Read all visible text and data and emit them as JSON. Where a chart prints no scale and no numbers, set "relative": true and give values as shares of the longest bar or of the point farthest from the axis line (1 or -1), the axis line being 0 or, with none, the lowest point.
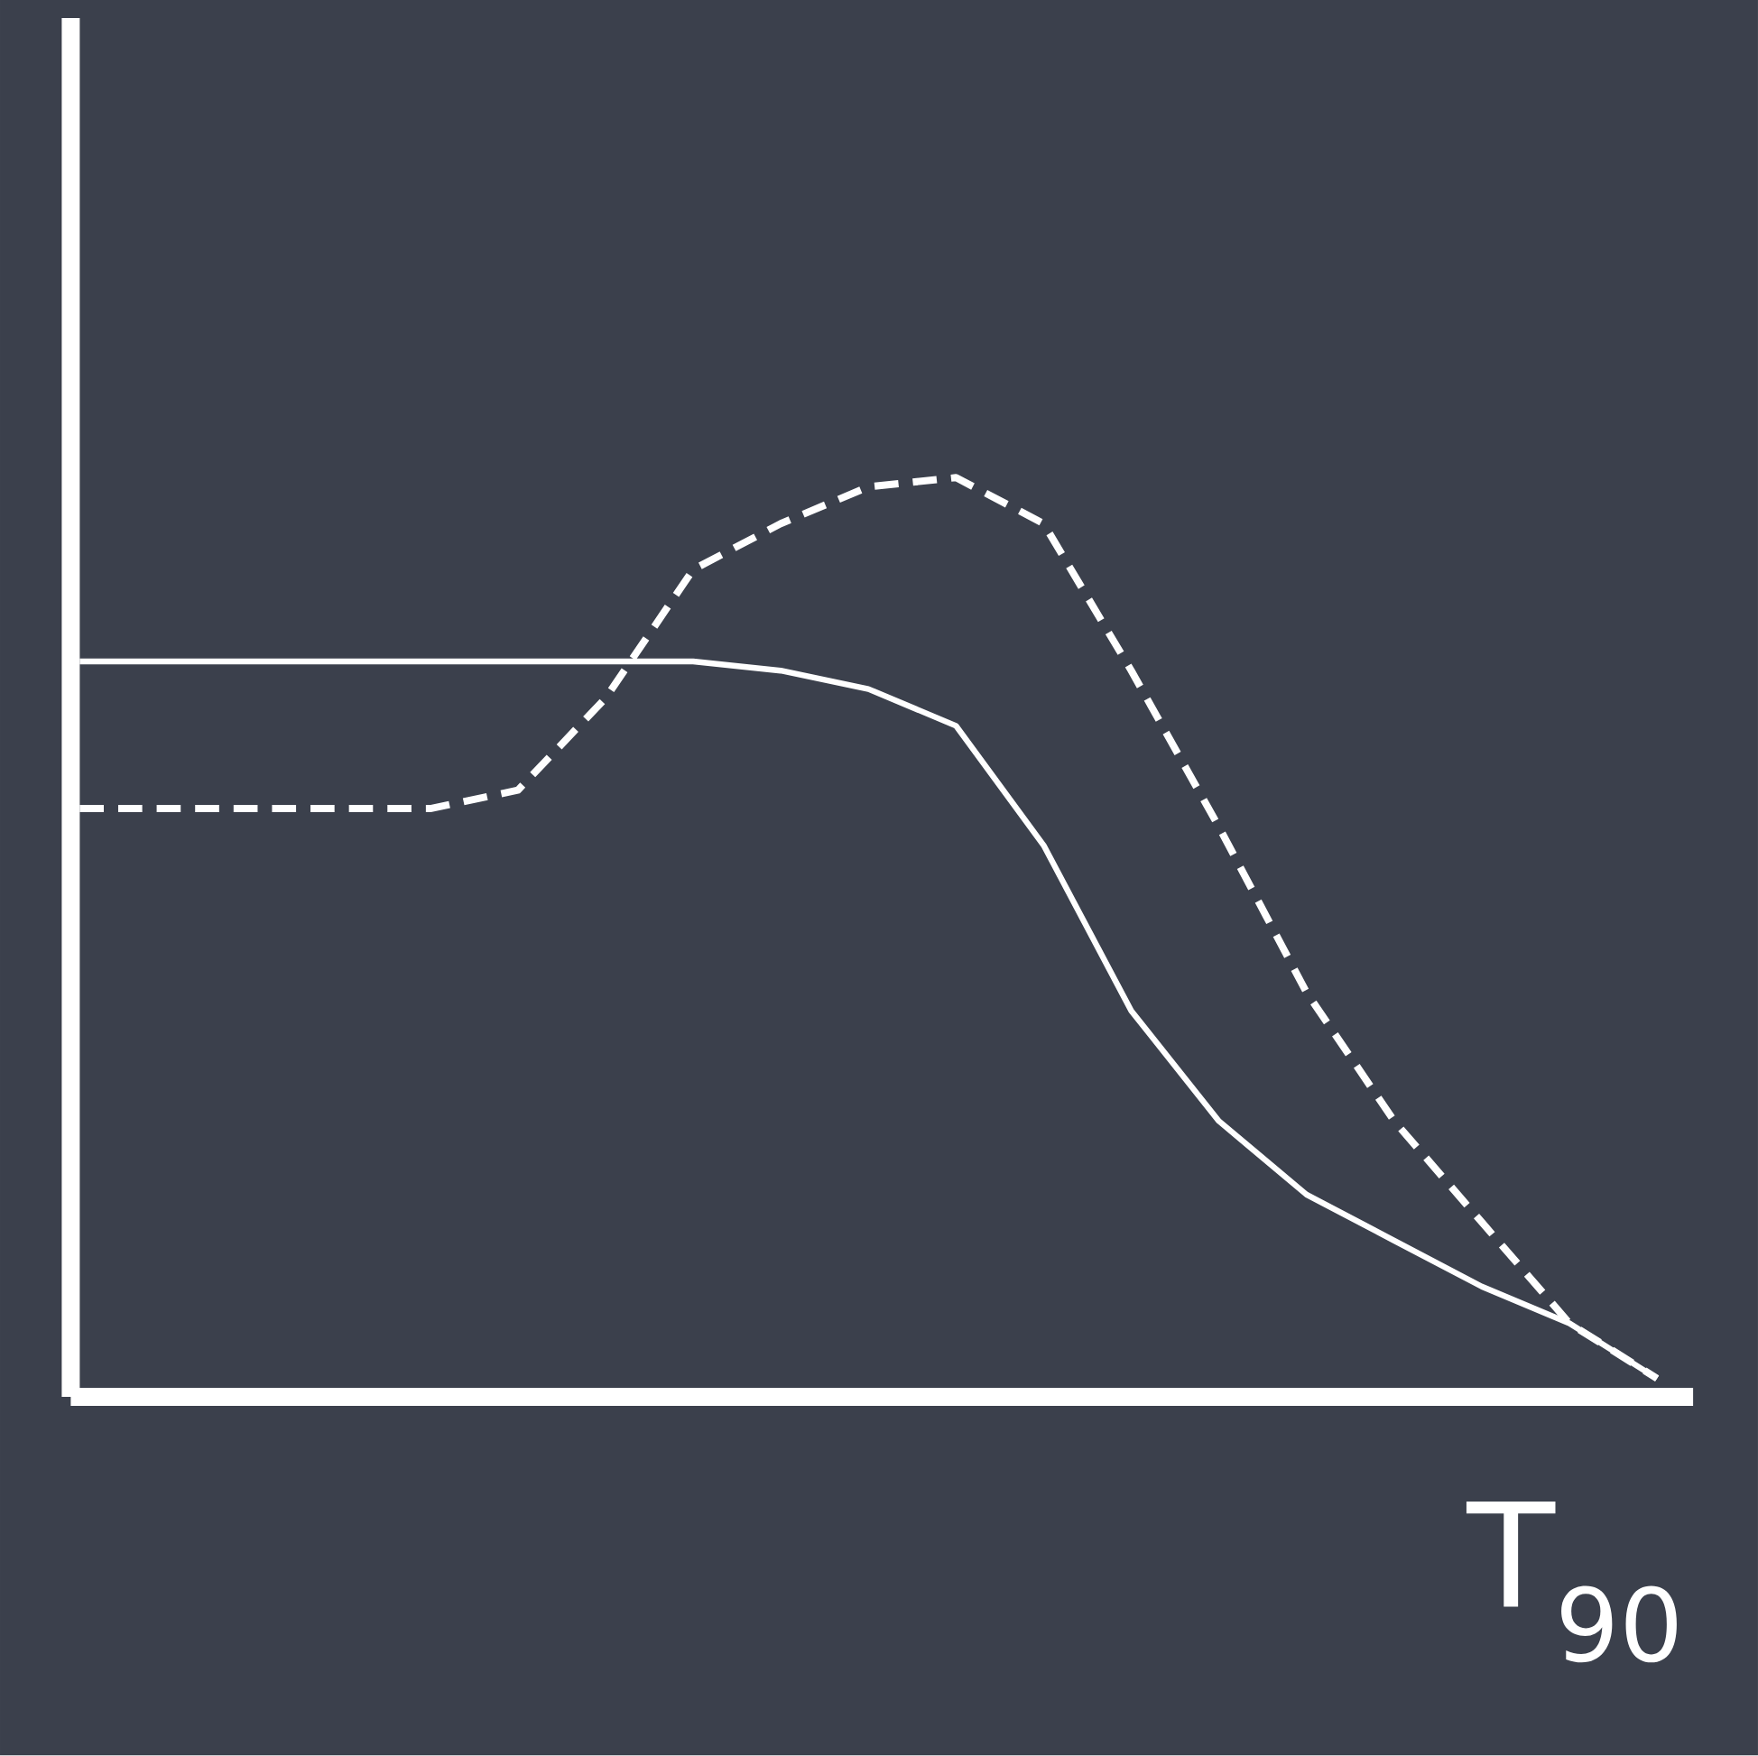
{
  "chart_data": {
    "type": "line",
    "relative": true,
    "xlabel": "T$_{90}$",
    "categories": [
      null,
      null,
      null,
      null,
      null,
      null,
      null,
      null,
      null,
      null,
      null,
      null,
      null,
      null,
      null,
      null,
      null,
      null,
      null
    ],
    "series": [
      {
        "color": "#ffffff",
        "line_style": "solid",
        "values": [
          0.8,
          0.8,
          0.8,
          0.8,
          0.8,
          0.8,
          0.8,
          0.8,
          0.79,
          0.77,
          0.73,
          0.6,
          0.42,
          0.3,
          0.22,
          0.17,
          0.12,
          0.08,
          0.02
        ]
      },
      {
        "color": "#ffffff",
        "line_style": "dashed",
        "values": [
          0.64,
          0.64,
          0.64,
          0.64,
          0.64,
          0.66,
          0.76,
          0.9,
          0.95,
          0.99,
          1.0,
          0.95,
          0.79,
          0.62,
          0.44,
          0.3,
          0.19,
          0.08,
          0.02
        ]
      }
    ]
  }
}
